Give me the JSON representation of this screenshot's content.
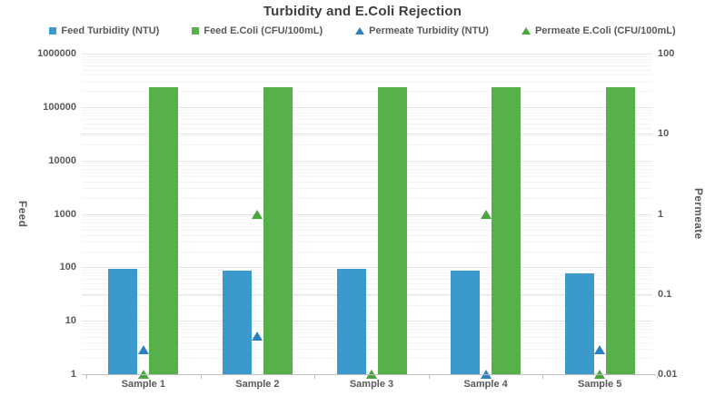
{
  "chart_data": {
    "type": "bar",
    "subtype": "combo-bar-scatter-dual-log-axis",
    "title": "Turbidity and E.Coli Rejection",
    "categories": [
      "Sample 1",
      "Sample 2",
      "Sample 3",
      "Sample 4",
      "Sample 5"
    ],
    "series": [
      {
        "name": "Feed Turbidity (NTU)",
        "render": "bar",
        "axis": "left",
        "color": "#3b99cc",
        "marker": "square",
        "values": [
          95,
          88,
          95,
          87,
          78
        ]
      },
      {
        "name": "Feed E.Coli (CFU/100mL)",
        "render": "bar",
        "axis": "left",
        "color": "#57b14b",
        "marker": "square",
        "values": [
          240000,
          240000,
          240000,
          240000,
          240000
        ]
      },
      {
        "name": "Permeate Turbidity (NTU)",
        "render": "scatter",
        "axis": "right",
        "color": "#2e7fc2",
        "marker": "triangle",
        "values": [
          0.02,
          0.03,
          0.01,
          0.01,
          0.02
        ]
      },
      {
        "name": "Permeate E.Coli (CFU/100mL)",
        "render": "scatter",
        "axis": "right",
        "color": "#4aa63c",
        "marker": "triangle",
        "values": [
          0.01,
          1,
          0.01,
          1,
          0.01
        ]
      }
    ],
    "left_axis": {
      "label": "Feed",
      "scale": "log",
      "min": 1,
      "max": 1000000,
      "ticks": [
        "1000000",
        "100000",
        "10000",
        "1000",
        "100",
        "10",
        "1"
      ]
    },
    "right_axis": {
      "label": "Permeate",
      "scale": "log",
      "min": 0.01,
      "max": 100,
      "ticks": [
        "100",
        "10",
        "1",
        "0.1",
        "0.01"
      ]
    },
    "legend_position": "top",
    "grid": true
  },
  "colors": {
    "bar_blue": "#3b99cc",
    "bar_green": "#57b14b",
    "marker_blue": "#2e7fc2",
    "marker_green": "#4aa63c",
    "axis_line": "#bfbfbf",
    "major_grid": "#e4e4e4",
    "minor_grid": "#f4f4f4",
    "title_text": "#3f3f3f",
    "label_text": "#595959"
  }
}
